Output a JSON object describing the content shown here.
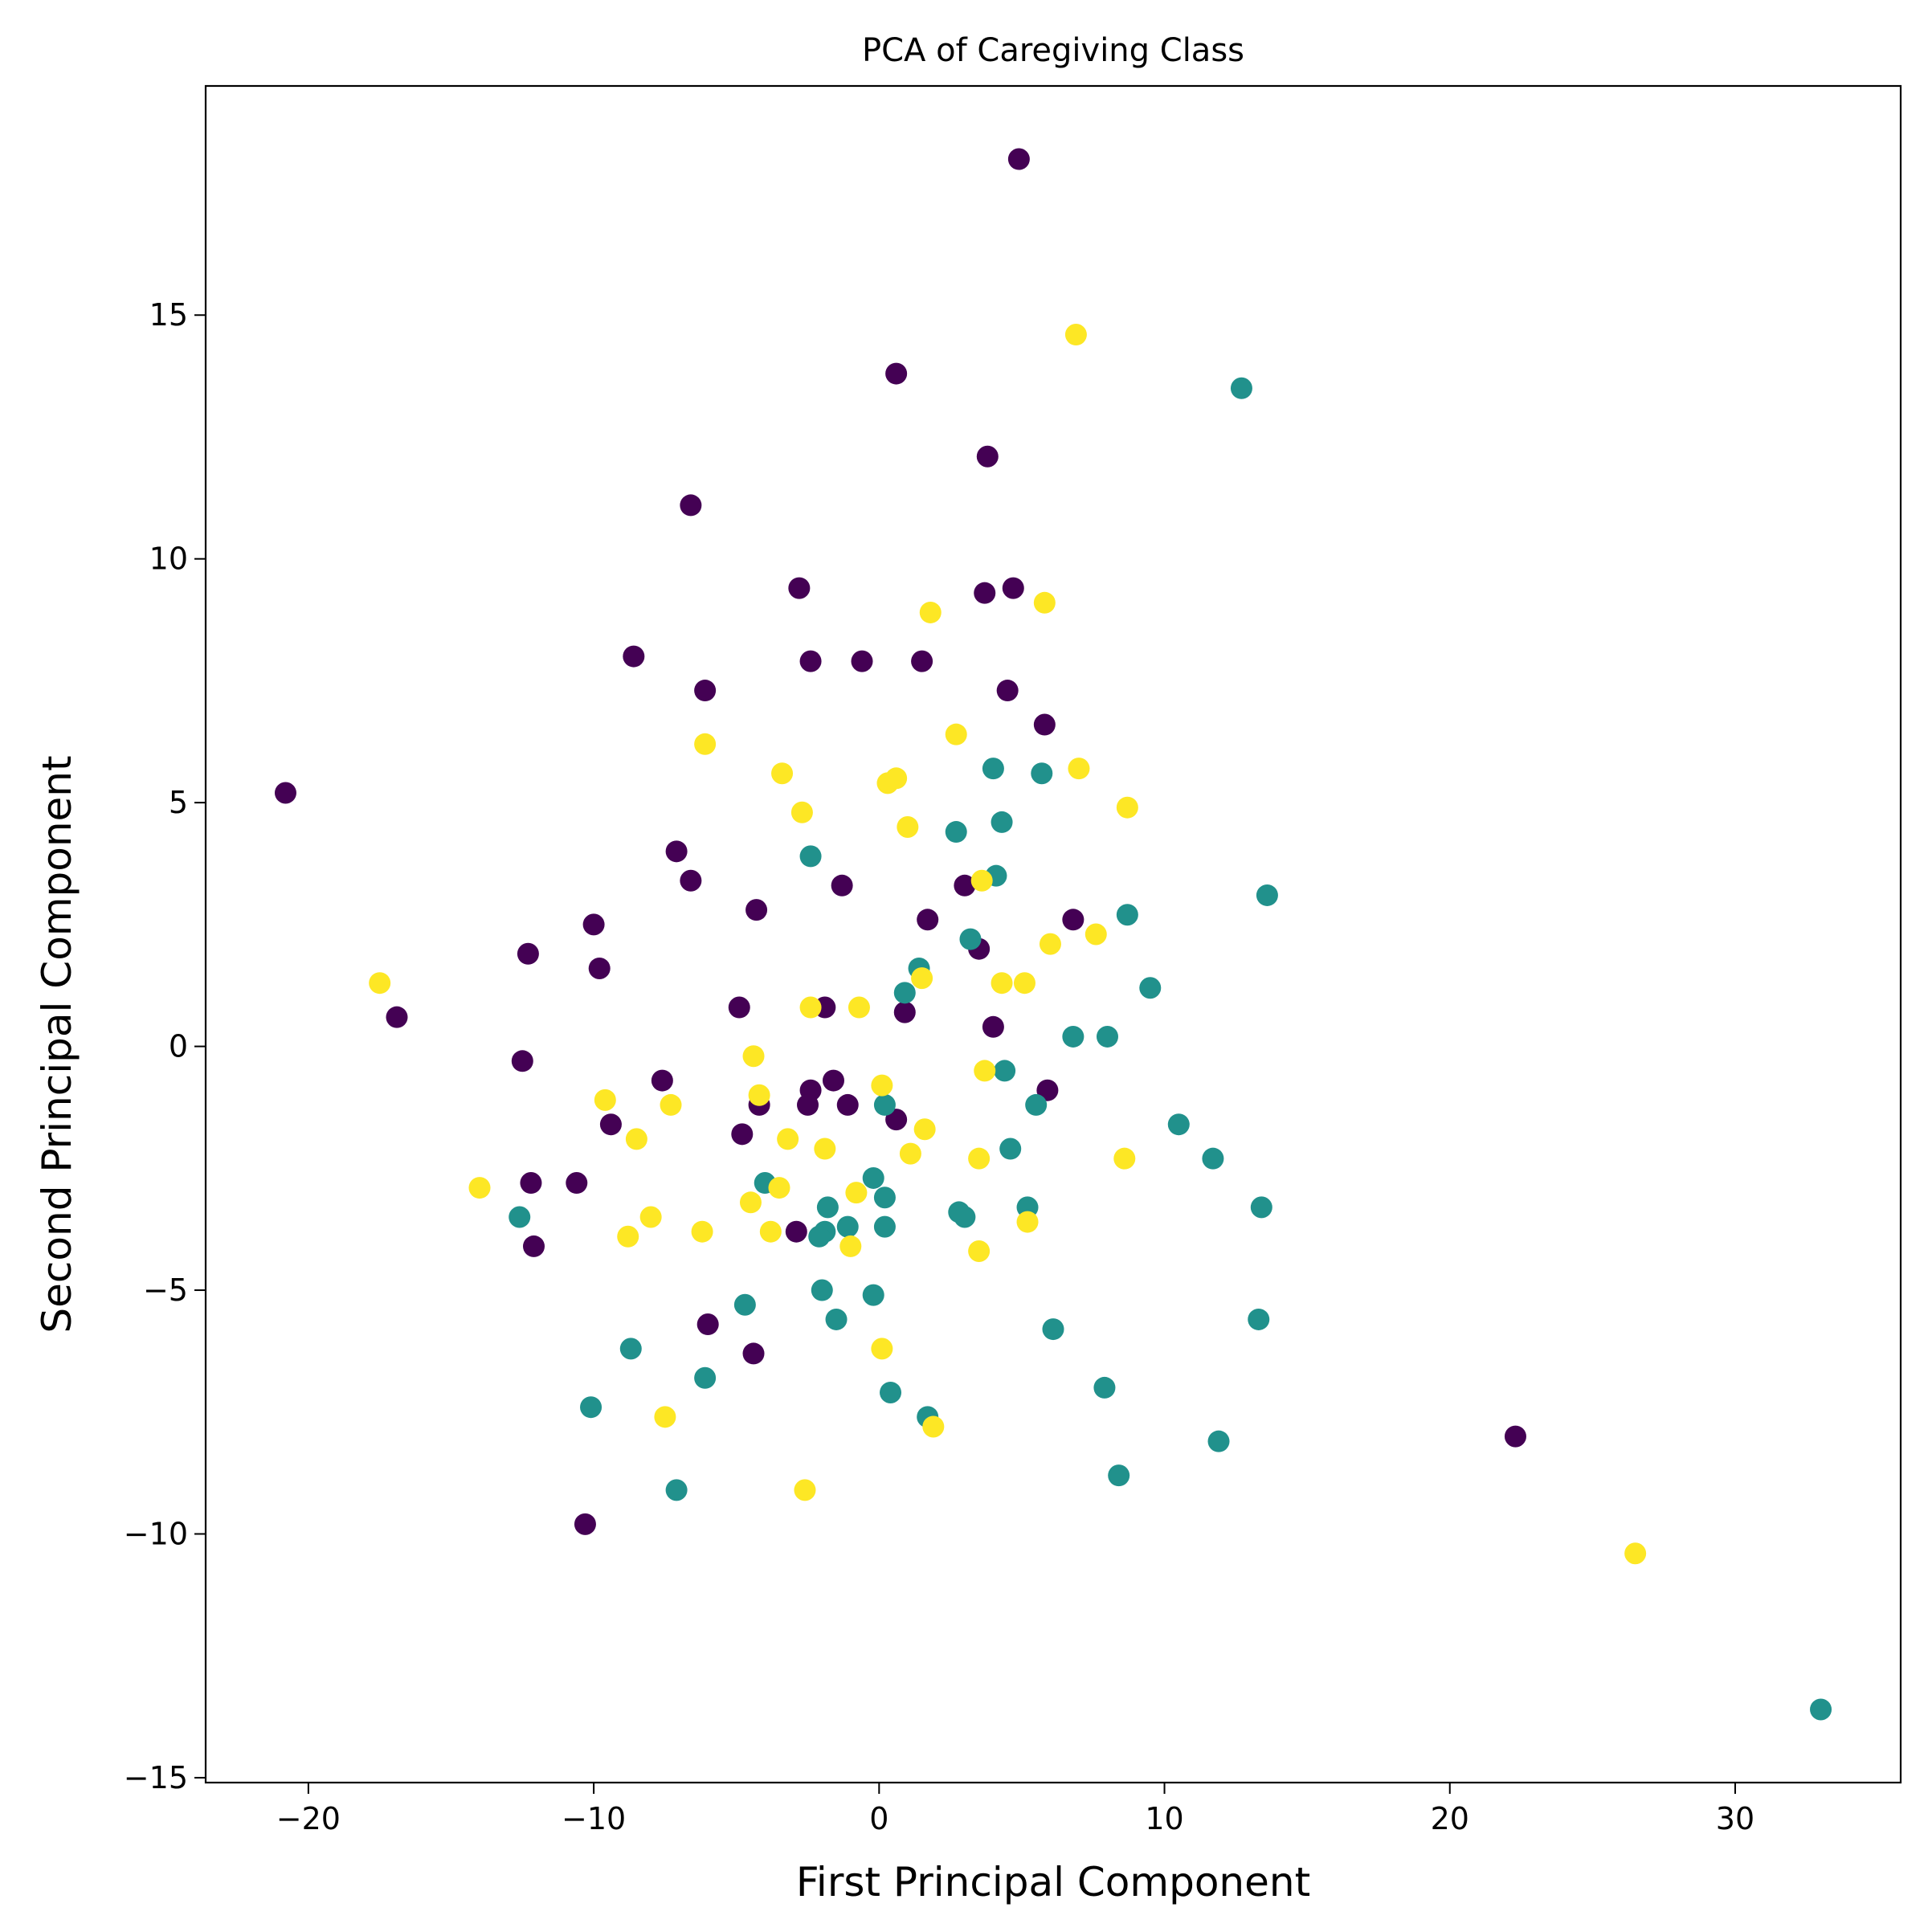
{
  "chart_data": {
    "type": "scatter",
    "title": "PCA of Caregiving Class",
    "xlabel": "First Principal Component",
    "ylabel": "Second Principal Component",
    "xlim": [
      -23.6,
      35.8
    ],
    "ylim": [
      -15.1,
      19.7
    ],
    "xticks": [
      -20,
      -10,
      0,
      10,
      20,
      30
    ],
    "xtick_labels": [
      "−20",
      "−10",
      "0",
      "10",
      "20",
      "30"
    ],
    "yticks": [
      -15,
      -10,
      -5,
      0,
      5,
      10,
      15
    ],
    "ytick_labels": [
      "−15",
      "−10",
      "−5",
      "0",
      "5",
      "10",
      "15"
    ],
    "grid": false,
    "legend": "none",
    "colors": {
      "class_0": "#440154",
      "class_1": "#21918c",
      "class_2": "#fde725"
    },
    "series": [
      {
        "name": "class_0",
        "color": "#440154",
        "points": [
          [
            4.9,
            18.2
          ],
          [
            0.6,
            13.8
          ],
          [
            3.8,
            12.1
          ],
          [
            -6.6,
            11.1
          ],
          [
            -2.8,
            9.4
          ],
          [
            3.7,
            9.3
          ],
          [
            4.7,
            9.4
          ],
          [
            -8.6,
            8.0
          ],
          [
            -2.4,
            7.9
          ],
          [
            -0.6,
            7.9
          ],
          [
            1.5,
            7.9
          ],
          [
            -6.1,
            7.3
          ],
          [
            4.5,
            7.3
          ],
          [
            5.8,
            6.6
          ],
          [
            -20.8,
            5.2
          ],
          [
            -7.1,
            4.0
          ],
          [
            -6.6,
            3.4
          ],
          [
            -1.3,
            3.3
          ],
          [
            3.0,
            3.3
          ],
          [
            -4.3,
            2.8
          ],
          [
            1.7,
            2.6
          ],
          [
            6.8,
            2.6
          ],
          [
            -10.0,
            2.5
          ],
          [
            -12.3,
            1.9
          ],
          [
            -9.8,
            1.6
          ],
          [
            3.5,
            2.0
          ],
          [
            -16.9,
            0.6
          ],
          [
            -4.9,
            0.8
          ],
          [
            -1.9,
            0.8
          ],
          [
            0.9,
            0.7
          ],
          [
            4.0,
            0.4
          ],
          [
            -12.5,
            -0.3
          ],
          [
            -7.6,
            -0.7
          ],
          [
            -1.6,
            -0.7
          ],
          [
            -2.4,
            -0.9
          ],
          [
            5.9,
            -0.9
          ],
          [
            -4.2,
            -1.2
          ],
          [
            -2.5,
            -1.2
          ],
          [
            -1.1,
            -1.2
          ],
          [
            0.6,
            -1.5
          ],
          [
            -9.4,
            -1.6
          ],
          [
            -4.8,
            -1.8
          ],
          [
            -12.2,
            -2.8
          ],
          [
            -10.6,
            -2.8
          ],
          [
            -2.9,
            -3.8
          ],
          [
            -12.1,
            -4.1
          ],
          [
            -6.0,
            -5.7
          ],
          [
            -4.4,
            -6.3
          ],
          [
            22.3,
            -8.0
          ],
          [
            -10.3,
            -9.8
          ]
        ]
      },
      {
        "name": "class_1",
        "color": "#21918c",
        "points": [
          [
            12.7,
            13.5
          ],
          [
            4.0,
            5.7
          ],
          [
            5.7,
            5.6
          ],
          [
            4.3,
            4.6
          ],
          [
            2.7,
            4.4
          ],
          [
            -2.4,
            3.9
          ],
          [
            4.1,
            3.5
          ],
          [
            13.6,
            3.1
          ],
          [
            8.7,
            2.7
          ],
          [
            3.2,
            2.2
          ],
          [
            1.4,
            1.6
          ],
          [
            9.5,
            1.2
          ],
          [
            0.9,
            1.1
          ],
          [
            6.8,
            0.2
          ],
          [
            8.0,
            0.2
          ],
          [
            4.4,
            -0.5
          ],
          [
            5.5,
            -1.2
          ],
          [
            0.2,
            -1.2
          ],
          [
            10.5,
            -1.6
          ],
          [
            4.6,
            -2.1
          ],
          [
            11.7,
            -2.3
          ],
          [
            -0.2,
            -2.7
          ],
          [
            -4.0,
            -2.8
          ],
          [
            0.2,
            -3.1
          ],
          [
            13.4,
            -3.3
          ],
          [
            -1.8,
            -3.3
          ],
          [
            5.2,
            -3.3
          ],
          [
            2.8,
            -3.4
          ],
          [
            3.0,
            -3.5
          ],
          [
            -12.6,
            -3.5
          ],
          [
            -1.1,
            -3.7
          ],
          [
            0.2,
            -3.7
          ],
          [
            -1.9,
            -3.8
          ],
          [
            -2.1,
            -3.9
          ],
          [
            -2.0,
            -5.0
          ],
          [
            -0.2,
            -5.1
          ],
          [
            -4.7,
            -5.3
          ],
          [
            -1.5,
            -5.6
          ],
          [
            13.3,
            -5.6
          ],
          [
            6.1,
            -5.8
          ],
          [
            -8.7,
            -6.2
          ],
          [
            -6.1,
            -6.8
          ],
          [
            7.9,
            -7.0
          ],
          [
            0.4,
            -7.1
          ],
          [
            -10.1,
            -7.4
          ],
          [
            1.7,
            -7.6
          ],
          [
            11.9,
            -8.1
          ],
          [
            8.4,
            -8.8
          ],
          [
            -7.1,
            -9.1
          ],
          [
            33.0,
            -13.6
          ]
        ]
      },
      {
        "name": "class_2",
        "color": "#fde725",
        "points": [
          [
            6.9,
            14.6
          ],
          [
            5.8,
            9.1
          ],
          [
            1.8,
            8.9
          ],
          [
            -6.1,
            6.2
          ],
          [
            2.7,
            6.4
          ],
          [
            -3.4,
            5.6
          ],
          [
            0.3,
            5.4
          ],
          [
            0.6,
            5.5
          ],
          [
            7.0,
            5.7
          ],
          [
            -2.7,
            4.8
          ],
          [
            1.0,
            4.5
          ],
          [
            8.7,
            4.9
          ],
          [
            3.6,
            3.4
          ],
          [
            7.6,
            2.3
          ],
          [
            6.0,
            2.1
          ],
          [
            -17.5,
            1.3
          ],
          [
            1.5,
            1.4
          ],
          [
            4.3,
            1.3
          ],
          [
            5.1,
            1.3
          ],
          [
            -2.4,
            0.8
          ],
          [
            -0.7,
            0.8
          ],
          [
            -4.4,
            -0.2
          ],
          [
            3.7,
            -0.5
          ],
          [
            0.1,
            -0.8
          ],
          [
            -9.6,
            -1.1
          ],
          [
            -4.2,
            -1.0
          ],
          [
            -7.3,
            -1.2
          ],
          [
            -8.5,
            -1.9
          ],
          [
            1.6,
            -1.7
          ],
          [
            -3.2,
            -1.9
          ],
          [
            -1.9,
            -2.1
          ],
          [
            1.1,
            -2.2
          ],
          [
            3.5,
            -2.3
          ],
          [
            8.6,
            -2.3
          ],
          [
            -14.0,
            -2.9
          ],
          [
            -3.5,
            -2.9
          ],
          [
            -0.8,
            -3.0
          ],
          [
            -4.5,
            -3.2
          ],
          [
            -8.0,
            -3.5
          ],
          [
            5.2,
            -3.6
          ],
          [
            -6.2,
            -3.8
          ],
          [
            -3.8,
            -3.8
          ],
          [
            -8.8,
            -3.9
          ],
          [
            -1.0,
            -4.1
          ],
          [
            3.5,
            -4.2
          ],
          [
            0.1,
            -6.2
          ],
          [
            -7.5,
            -7.6
          ],
          [
            1.9,
            -7.8
          ],
          [
            -2.6,
            -9.1
          ],
          [
            26.5,
            -10.4
          ]
        ]
      }
    ]
  }
}
